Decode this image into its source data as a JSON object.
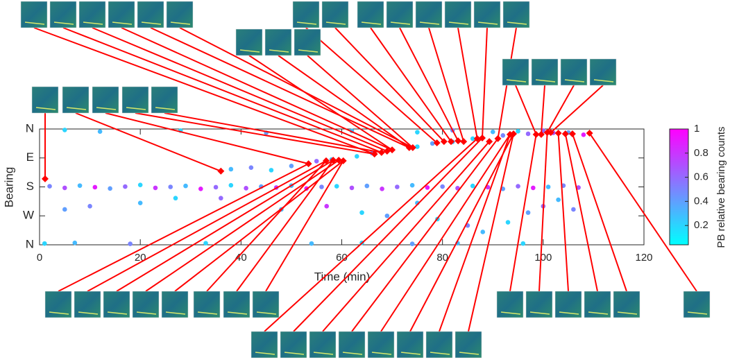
{
  "chart_data": {
    "type": "scatter",
    "xlabel": "Time (min)",
    "ylabel": "Bearing",
    "xlim": [
      0,
      120
    ],
    "xticks": [
      0,
      20,
      40,
      60,
      80,
      100,
      120
    ],
    "ylim": [
      0,
      360
    ],
    "yticks": [
      {
        "value": 0,
        "label": "N"
      },
      {
        "value": 90,
        "label": "E"
      },
      {
        "value": 180,
        "label": "S"
      },
      {
        "value": 270,
        "label": "W"
      },
      {
        "value": 360,
        "label": "N"
      }
    ],
    "series": [
      {
        "x": [
          2,
          5,
          8,
          11,
          14,
          17,
          20,
          23,
          26,
          29,
          32,
          35,
          38,
          41,
          44,
          47,
          50,
          53,
          56,
          59,
          62,
          65,
          68,
          71,
          74,
          77,
          80,
          83,
          86,
          89,
          92,
          95,
          98,
          101,
          104,
          107,
          5,
          12,
          28,
          45,
          62,
          75,
          82,
          90,
          95,
          100,
          105,
          1,
          7,
          18,
          33,
          54,
          64,
          74,
          83,
          96,
          38,
          42,
          46,
          50,
          55,
          58,
          63,
          66,
          70,
          75,
          78,
          82,
          86,
          92,
          97,
          102,
          108,
          5,
          10,
          20,
          27,
          36,
          48,
          57,
          64,
          69,
          75,
          79,
          85,
          88,
          93,
          97,
          100,
          103,
          106
        ],
        "y": [
          178,
          183,
          176,
          181,
          185,
          179,
          174,
          183,
          180,
          177,
          186,
          181,
          175,
          184,
          179,
          182,
          176,
          185,
          180,
          178,
          183,
          177,
          186,
          180,
          175,
          182,
          179,
          184,
          177,
          181,
          186,
          178,
          183,
          180,
          176,
          182,
          3,
          8,
          5,
          12,
          6,
          10,
          4,
          9,
          7,
          5,
          11,
          356,
          354,
          357,
          355,
          356,
          354,
          357,
          355,
          356,
          125,
          120,
          128,
          115,
          100,
          95,
          85,
          75,
          65,
          55,
          45,
          40,
          30,
          20,
          15,
          12,
          18,
          250,
          240,
          230,
          215,
          215,
          250,
          240,
          260,
          270,
          230,
          280,
          300,
          320,
          290,
          260,
          240,
          220,
          250
        ],
        "c": [
          0.5,
          0.7,
          0.3,
          0.9,
          0.4,
          0.6,
          0.2,
          0.8,
          0.5,
          0.3,
          0.9,
          0.6,
          0.2,
          0.7,
          0.4,
          0.8,
          0.3,
          0.9,
          0.5,
          0.2,
          0.7,
          0.4,
          0.8,
          0.6,
          0.3,
          0.9,
          0.5,
          0.7,
          0.2,
          0.8,
          0.4,
          0.6,
          0.9,
          0.3,
          0.5,
          0.7,
          0.2,
          0.3,
          0.2,
          0.4,
          0.3,
          0.2,
          0.5,
          0.3,
          0.2,
          0.6,
          0.4,
          0.2,
          0.3,
          0.5,
          0.2,
          0.3,
          0.2,
          0.4,
          0.3,
          0.2,
          0.3,
          0.5,
          0.2,
          0.4,
          0.6,
          0.3,
          0.2,
          0.5,
          0.3,
          0.2,
          0.4,
          0.3,
          0.2,
          0.5,
          0.6,
          0.7,
          0.9,
          0.4,
          0.5,
          0.3,
          0.2,
          0.6,
          0.3,
          0.8,
          0.2,
          0.4,
          0.3,
          0.2,
          0.5,
          0.3,
          0.2,
          0.4,
          0.6,
          0.3,
          0.5
        ]
      },
      {
        "marker": "diamond",
        "color": "#ff0000",
        "x": [
          1.1,
          36,
          53.4,
          56.9,
          58.3,
          59.4,
          60.3,
          66.5,
          67.9,
          69,
          70,
          73.4,
          74.1,
          78.9,
          80.3,
          81.7,
          83.1,
          84.2,
          86.9,
          87.9,
          89.3,
          91,
          93.4,
          94.1,
          98.6,
          99.6,
          100.8,
          101.5,
          103,
          104.4,
          105.8,
          109.2
        ],
        "y": [
          155,
          131,
          108,
          99,
          97,
          97,
          99,
          78,
          73,
          69,
          65,
          58,
          58,
          43,
          39,
          39,
          37,
          39,
          30,
          28,
          39,
          30,
          17,
          15,
          17,
          17,
          11,
          11,
          13,
          15,
          15,
          13
        ]
      }
    ],
    "colorbar": {
      "label": "PB relative bearing counts",
      "clim": [
        0.04,
        1
      ],
      "ticks": [
        0.2,
        0.4,
        0.6,
        0.8,
        1
      ],
      "colors": [
        "#00ffff",
        "#ff00ff"
      ]
    }
  }
}
